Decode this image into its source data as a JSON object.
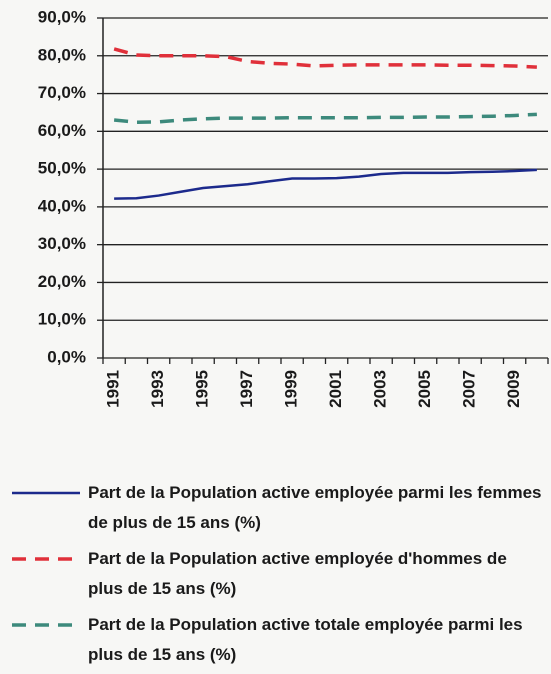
{
  "chart_data": {
    "type": "line",
    "categories": [
      "1991",
      null,
      "1993",
      null,
      "1995",
      null,
      "1997",
      null,
      "1999",
      null,
      "2001",
      null,
      "2003",
      null,
      "2005",
      null,
      "2007",
      null,
      "2009",
      null
    ],
    "series": [
      {
        "name": "Part de la Population active employée parmi les femmes de plus de 15 ans (%)",
        "color": "#1c2a8c",
        "dash": "solid",
        "values": [
          42.2,
          42.3,
          43,
          44,
          45,
          45.5,
          46,
          46.8,
          47.5,
          47.5,
          47.6,
          48,
          48.7,
          49,
          49,
          49,
          49.2,
          49.3,
          49.5,
          49.8
        ]
      },
      {
        "name": "Part de la Population active employée d'hommes de plus de 15 ans (%)",
        "color": "#e0303a",
        "dash": "dashed",
        "values": [
          81.8,
          80.2,
          80,
          80,
          80,
          79.8,
          78.5,
          78,
          77.8,
          77.3,
          77.5,
          77.6,
          77.6,
          77.6,
          77.6,
          77.5,
          77.5,
          77.4,
          77.3,
          77
        ]
      },
      {
        "name": "Part de la Population active totale employée parmi les plus de 15 ans (%)",
        "color": "#3d8a7c",
        "dash": "dashed",
        "values": [
          63,
          62.4,
          62.5,
          63,
          63.3,
          63.5,
          63.5,
          63.5,
          63.6,
          63.6,
          63.6,
          63.6,
          63.7,
          63.7,
          63.8,
          63.8,
          63.9,
          64,
          64.2,
          64.5
        ]
      }
    ],
    "ylim": [
      0,
      90
    ],
    "yticks": [
      {
        "value": 0,
        "label": "0,0%"
      },
      {
        "value": 10,
        "label": "10,0%"
      },
      {
        "value": 20,
        "label": "20,0%"
      },
      {
        "value": 30,
        "label": "30,0%"
      },
      {
        "value": 40,
        "label": "40,0%"
      },
      {
        "value": 50,
        "label": "50,0%"
      },
      {
        "value": 60,
        "label": "60,0%"
      },
      {
        "value": 70,
        "label": "70,0%"
      },
      {
        "value": 80,
        "label": "80,0%"
      },
      {
        "value": 90,
        "label": "90,0%"
      }
    ],
    "grid": true,
    "legend": "bottom"
  }
}
